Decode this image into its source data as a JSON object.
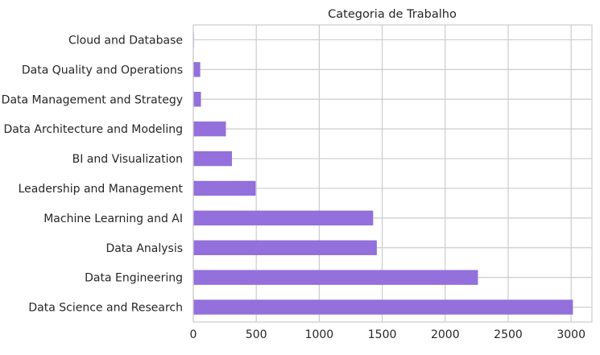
{
  "chart_data": {
    "type": "bar",
    "orientation": "horizontal",
    "title": "Categoria de Trabalho",
    "xlabel": "",
    "ylabel": "",
    "categories": [
      "Data Science and Research",
      "Data Engineering",
      "Data Analysis",
      "Machine Learning and AI",
      "Leadership and Management",
      "BI and Visualization",
      "Data Architecture and Modeling",
      "Data Management and Strategy",
      "Data Quality and Operations",
      "Cloud and Database"
    ],
    "values": [
      3014,
      2260,
      1457,
      1428,
      495,
      307,
      259,
      61,
      55,
      5
    ],
    "xlim": [
      0,
      3165
    ],
    "xticks": [
      0,
      500,
      1000,
      1500,
      2000,
      2500,
      3000
    ],
    "grid": true,
    "legend": "none",
    "bar_color": "#9370db",
    "grid_color": "#cccccc",
    "background": "#ffffff"
  }
}
